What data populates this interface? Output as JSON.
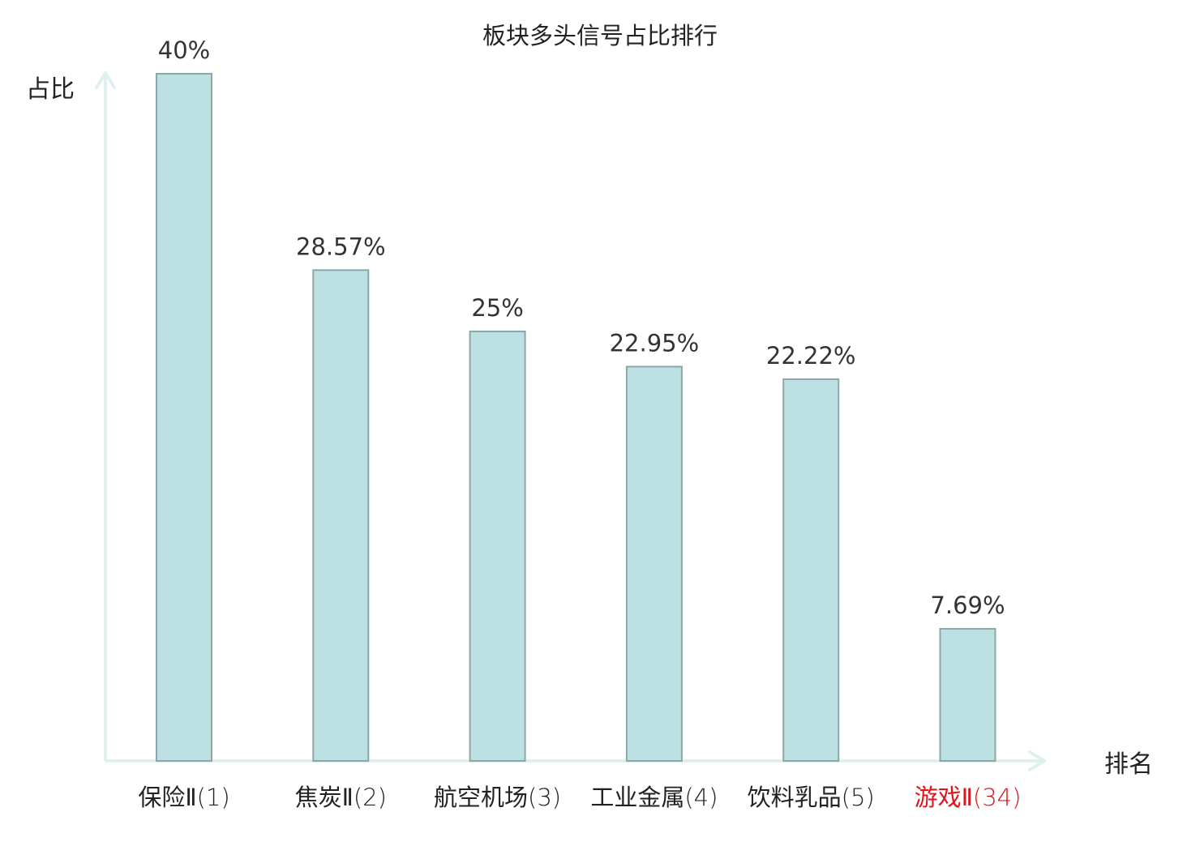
{
  "chart_data": {
    "type": "bar",
    "title": "板块多头信号占比排行",
    "ylabel": "占比",
    "xlabel": "排名",
    "categories": [
      {
        "name": "保险Ⅱ",
        "rank": "(1)",
        "highlight": false
      },
      {
        "name": "焦炭Ⅱ",
        "rank": "(2)",
        "highlight": false
      },
      {
        "name": "航空机场",
        "rank": "(3)",
        "highlight": false
      },
      {
        "name": "工业金属",
        "rank": "(4)",
        "highlight": false
      },
      {
        "name": "饮料乳品",
        "rank": "(5)",
        "highlight": false
      },
      {
        "name": "游戏Ⅱ",
        "rank": "(34)",
        "highlight": true
      }
    ],
    "values": [
      40,
      28.57,
      25,
      22.95,
      22.22,
      7.69
    ],
    "value_labels": [
      "40%",
      "28.57%",
      "25%",
      "22.95%",
      "22.22%",
      "7.69%"
    ],
    "ylim": [
      0,
      40
    ],
    "grid": false,
    "legend": "none",
    "colors": {
      "bar_fill": "#bde0e2",
      "bar_stroke": "#8aa8aa",
      "axis": "#dff1ee",
      "text": "#333333",
      "label_text": "#222222",
      "highlight_text": "#e0141a"
    }
  }
}
